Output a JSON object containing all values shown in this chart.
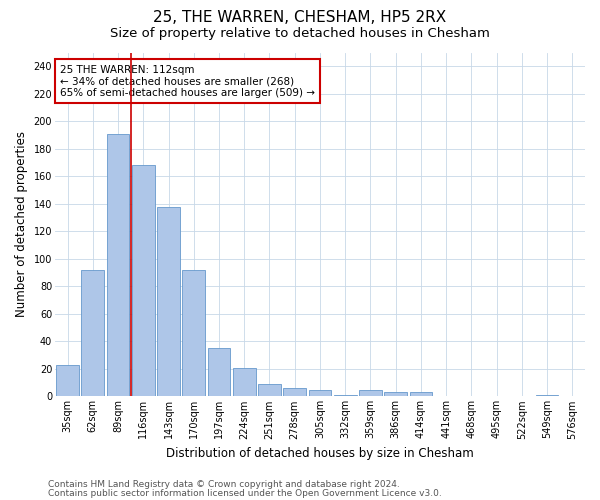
{
  "title": "25, THE WARREN, CHESHAM, HP5 2RX",
  "subtitle": "Size of property relative to detached houses in Chesham",
  "xlabel": "Distribution of detached houses by size in Chesham",
  "ylabel": "Number of detached properties",
  "categories": [
    "35sqm",
    "62sqm",
    "89sqm",
    "116sqm",
    "143sqm",
    "170sqm",
    "197sqm",
    "224sqm",
    "251sqm",
    "278sqm",
    "305sqm",
    "332sqm",
    "359sqm",
    "386sqm",
    "414sqm",
    "441sqm",
    "468sqm",
    "495sqm",
    "522sqm",
    "549sqm",
    "576sqm"
  ],
  "values": [
    23,
    92,
    191,
    168,
    138,
    92,
    35,
    21,
    9,
    6,
    5,
    1,
    5,
    3,
    3,
    0,
    0,
    0,
    0,
    1,
    0
  ],
  "bar_color": "#aec6e8",
  "bar_edge_color": "#6699cc",
  "vline_color": "#cc0000",
  "vline_x": 2.5,
  "annotation_text": "25 THE WARREN: 112sqm\n← 34% of detached houses are smaller (268)\n65% of semi-detached houses are larger (509) →",
  "annotation_box_color": "#ffffff",
  "annotation_box_edge": "#cc0000",
  "ylim": [
    0,
    250
  ],
  "yticks": [
    0,
    20,
    40,
    60,
    80,
    100,
    120,
    140,
    160,
    180,
    200,
    220,
    240
  ],
  "footer_line1": "Contains HM Land Registry data © Crown copyright and database right 2024.",
  "footer_line2": "Contains public sector information licensed under the Open Government Licence v3.0.",
  "bg_color": "#ffffff",
  "grid_color": "#c8d8e8",
  "title_fontsize": 11,
  "subtitle_fontsize": 9.5,
  "axis_label_fontsize": 8.5,
  "tick_fontsize": 7,
  "footer_fontsize": 6.5,
  "annotation_fontsize": 7.5
}
